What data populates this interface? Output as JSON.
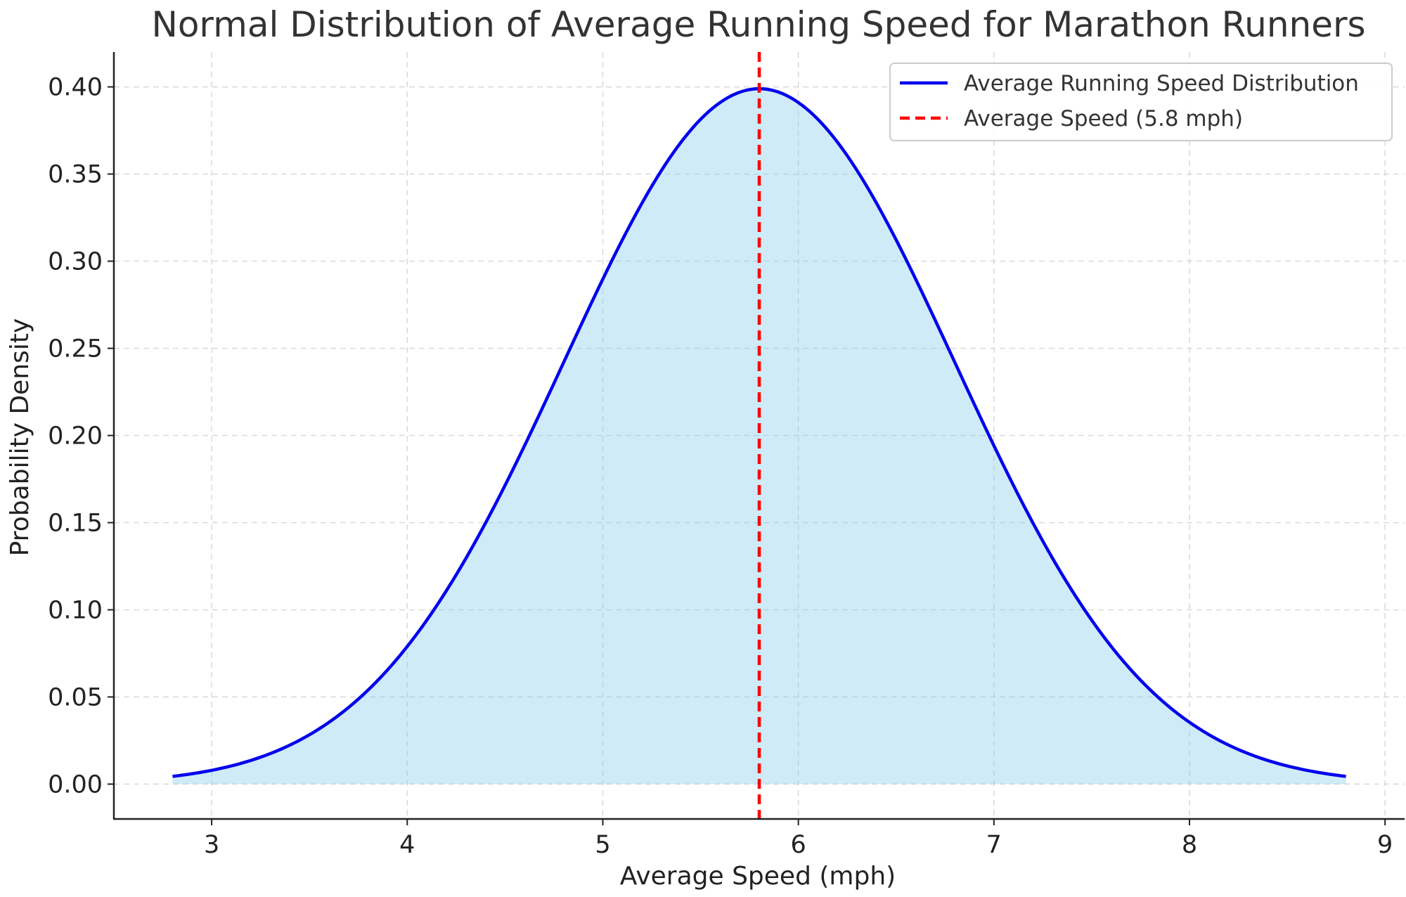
{
  "chart_data": {
    "type": "line",
    "title": "Normal Distribution of Average Running Speed for Marathon Runners",
    "xlabel": "Average Speed (mph)",
    "ylabel": "Probability Density",
    "xlim": [
      2.5,
      9.1
    ],
    "ylim": [
      -0.02,
      0.42
    ],
    "x_ticks": [
      3,
      4,
      5,
      6,
      7,
      8,
      9
    ],
    "x_tick_labels": [
      "3",
      "4",
      "5",
      "6",
      "7",
      "8",
      "9"
    ],
    "y_ticks": [
      0.0,
      0.05,
      0.1,
      0.15,
      0.2,
      0.25,
      0.3,
      0.35,
      0.4
    ],
    "y_tick_labels": [
      "0.00",
      "0.05",
      "0.10",
      "0.15",
      "0.20",
      "0.25",
      "0.30",
      "0.35",
      "0.40"
    ],
    "grid": true,
    "legend_position": "top-right",
    "series": [
      {
        "name": "Average Running Speed Distribution",
        "kind": "normal-pdf",
        "mean": 5.8,
        "std": 1.0,
        "x_range": [
          2.8,
          8.8
        ],
        "color": "#0000ee",
        "fill_color": "#87ceeb",
        "fill_opacity": 0.4
      }
    ],
    "reference_lines": [
      {
        "name": "Average Speed (5.8 mph)",
        "x": 5.8,
        "color": "#ff0000",
        "style": "dashed"
      }
    ]
  }
}
